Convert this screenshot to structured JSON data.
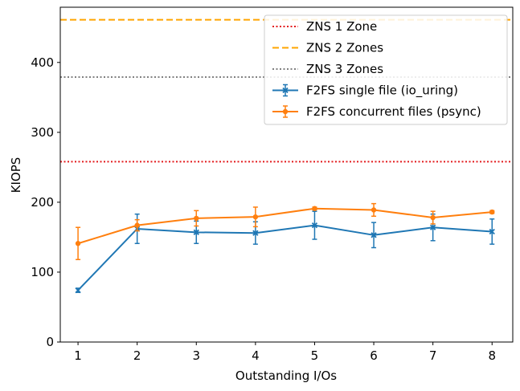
{
  "chart_data": {
    "type": "line",
    "xlabel": "Outstanding I/Os",
    "ylabel": "KIOPS",
    "x": [
      1,
      2,
      3,
      4,
      5,
      6,
      7,
      8
    ],
    "xlim": [
      0.7,
      8.35
    ],
    "ylim": [
      0,
      479
    ],
    "xticks": [
      "1",
      "2",
      "3",
      "4",
      "5",
      "6",
      "7",
      "8"
    ],
    "yticks": [
      0,
      100,
      200,
      300,
      400
    ],
    "grid": false,
    "legend_position": "top-right",
    "reference_lines": [
      {
        "name": "ZNS 1 Zone",
        "y": 258,
        "color": "#e31a1c",
        "style": "dotted"
      },
      {
        "name": "ZNS 2 Zones",
        "y": 461,
        "color": "#ffa500",
        "style": "dashed"
      },
      {
        "name": "ZNS 3 Zones",
        "y": 379,
        "color": "#808080",
        "style": "dotted"
      }
    ],
    "series": [
      {
        "name": "F2FS single file (io_uring)",
        "color": "#1f77b4",
        "marker": "x",
        "values": [
          74,
          162,
          157,
          156,
          167,
          153,
          164,
          158
        ],
        "error": [
          3,
          21,
          16,
          16,
          20,
          18,
          19,
          18
        ]
      },
      {
        "name": "F2FS concurrent files (psync)",
        "color": "#ff7f0e",
        "marker": "circle",
        "values": [
          141,
          167,
          177,
          179,
          191,
          189,
          178,
          186
        ],
        "error": [
          23,
          8,
          11,
          14,
          2,
          9,
          9,
          2
        ]
      }
    ]
  }
}
